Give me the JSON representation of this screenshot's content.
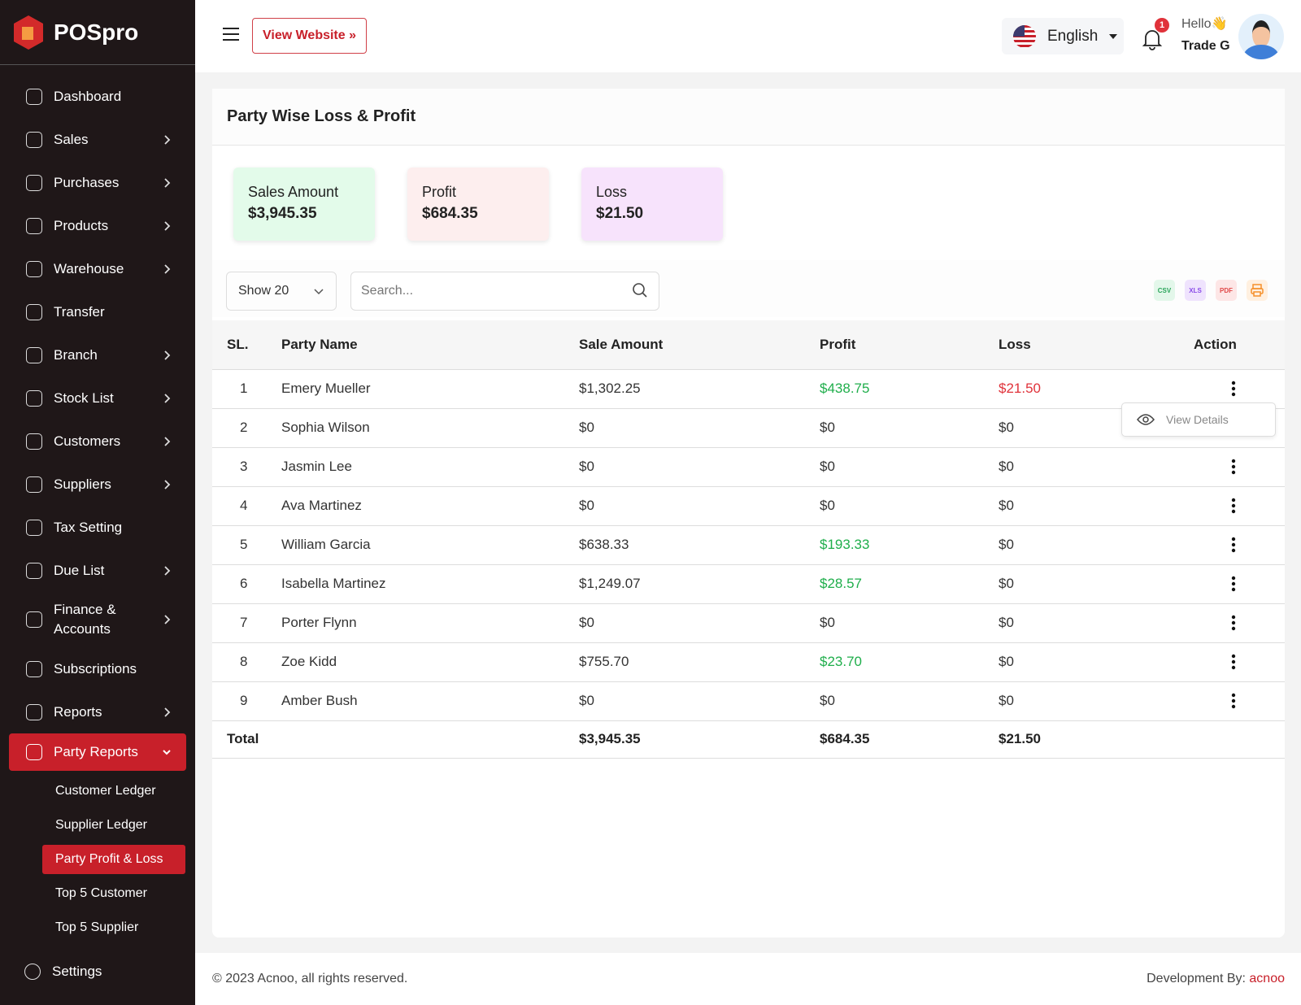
{
  "brand": "POSpro",
  "sidebar": {
    "items": [
      {
        "label": "Dashboard",
        "chev": false
      },
      {
        "label": "Sales",
        "chev": true
      },
      {
        "label": "Purchases",
        "chev": true
      },
      {
        "label": "Products",
        "chev": true
      },
      {
        "label": "Warehouse",
        "chev": true
      },
      {
        "label": "Transfer",
        "chev": false
      },
      {
        "label": "Branch",
        "chev": true
      },
      {
        "label": "Stock List",
        "chev": true
      },
      {
        "label": "Customers",
        "chev": true
      },
      {
        "label": "Suppliers",
        "chev": true
      },
      {
        "label": "Tax Setting",
        "chev": false
      },
      {
        "label": "Due List",
        "chev": true
      },
      {
        "label": "Finance & Accounts",
        "chev": true
      },
      {
        "label": "Subscriptions",
        "chev": false
      },
      {
        "label": "Reports",
        "chev": true
      }
    ],
    "active": "Party Reports",
    "sub": [
      "Customer Ledger",
      "Supplier Ledger",
      "Party Profit & Loss",
      "Top 5 Customer",
      "Top 5 Supplier"
    ],
    "settings": "Settings"
  },
  "header": {
    "view_website": "View Website »",
    "language": "English",
    "notifications": "1",
    "hello": "Hello👋",
    "user": "Trade G"
  },
  "page": {
    "title": "Party Wise Loss & Profit",
    "stats": [
      {
        "label": "Sales Amount",
        "value": "$3,945.35",
        "color": "#e3fbea"
      },
      {
        "label": "Profit",
        "value": "$684.35",
        "color": "#fdeeee"
      },
      {
        "label": "Loss",
        "value": "$21.50",
        "color": "#f7e3fc"
      }
    ],
    "show": "Show 20",
    "search_placeholder": "Search...",
    "exports": [
      "CSV",
      "XLS",
      "PDF",
      "Print"
    ],
    "columns": [
      "SL.",
      "Party Name",
      "Sale Amount",
      "Profit",
      "Loss",
      "Action"
    ],
    "rows": [
      [
        "1",
        "Emery Mueller",
        "$1,302.25",
        "$438.75",
        "$21.50"
      ],
      [
        "2",
        "Sophia Wilson",
        "$0",
        "$0",
        "$0"
      ],
      [
        "3",
        "Jasmin Lee",
        "$0",
        "$0",
        "$0"
      ],
      [
        "4",
        "Ava Martinez",
        "$0",
        "$0",
        "$0"
      ],
      [
        "5",
        "William Garcia",
        "$638.33",
        "$193.33",
        "$0"
      ],
      [
        "6",
        "Isabella Martinez",
        "$1,249.07",
        "$28.57",
        "$0"
      ],
      [
        "7",
        "Porter Flynn",
        "$0",
        "$0",
        "$0"
      ],
      [
        "8",
        "Zoe Kidd",
        "$755.70",
        "$23.70",
        "$0"
      ],
      [
        "9",
        "Amber Bush",
        "$0",
        "$0",
        "$0"
      ]
    ],
    "total": {
      "label": "Total",
      "sale": "$3,945.35",
      "profit": "$684.35",
      "loss": "$21.50"
    },
    "popup": "View Details"
  },
  "footer": {
    "copyright": "© 2023 Acnoo, all rights reserved.",
    "dev_label": "Development By: ",
    "dev": "acnoo"
  }
}
